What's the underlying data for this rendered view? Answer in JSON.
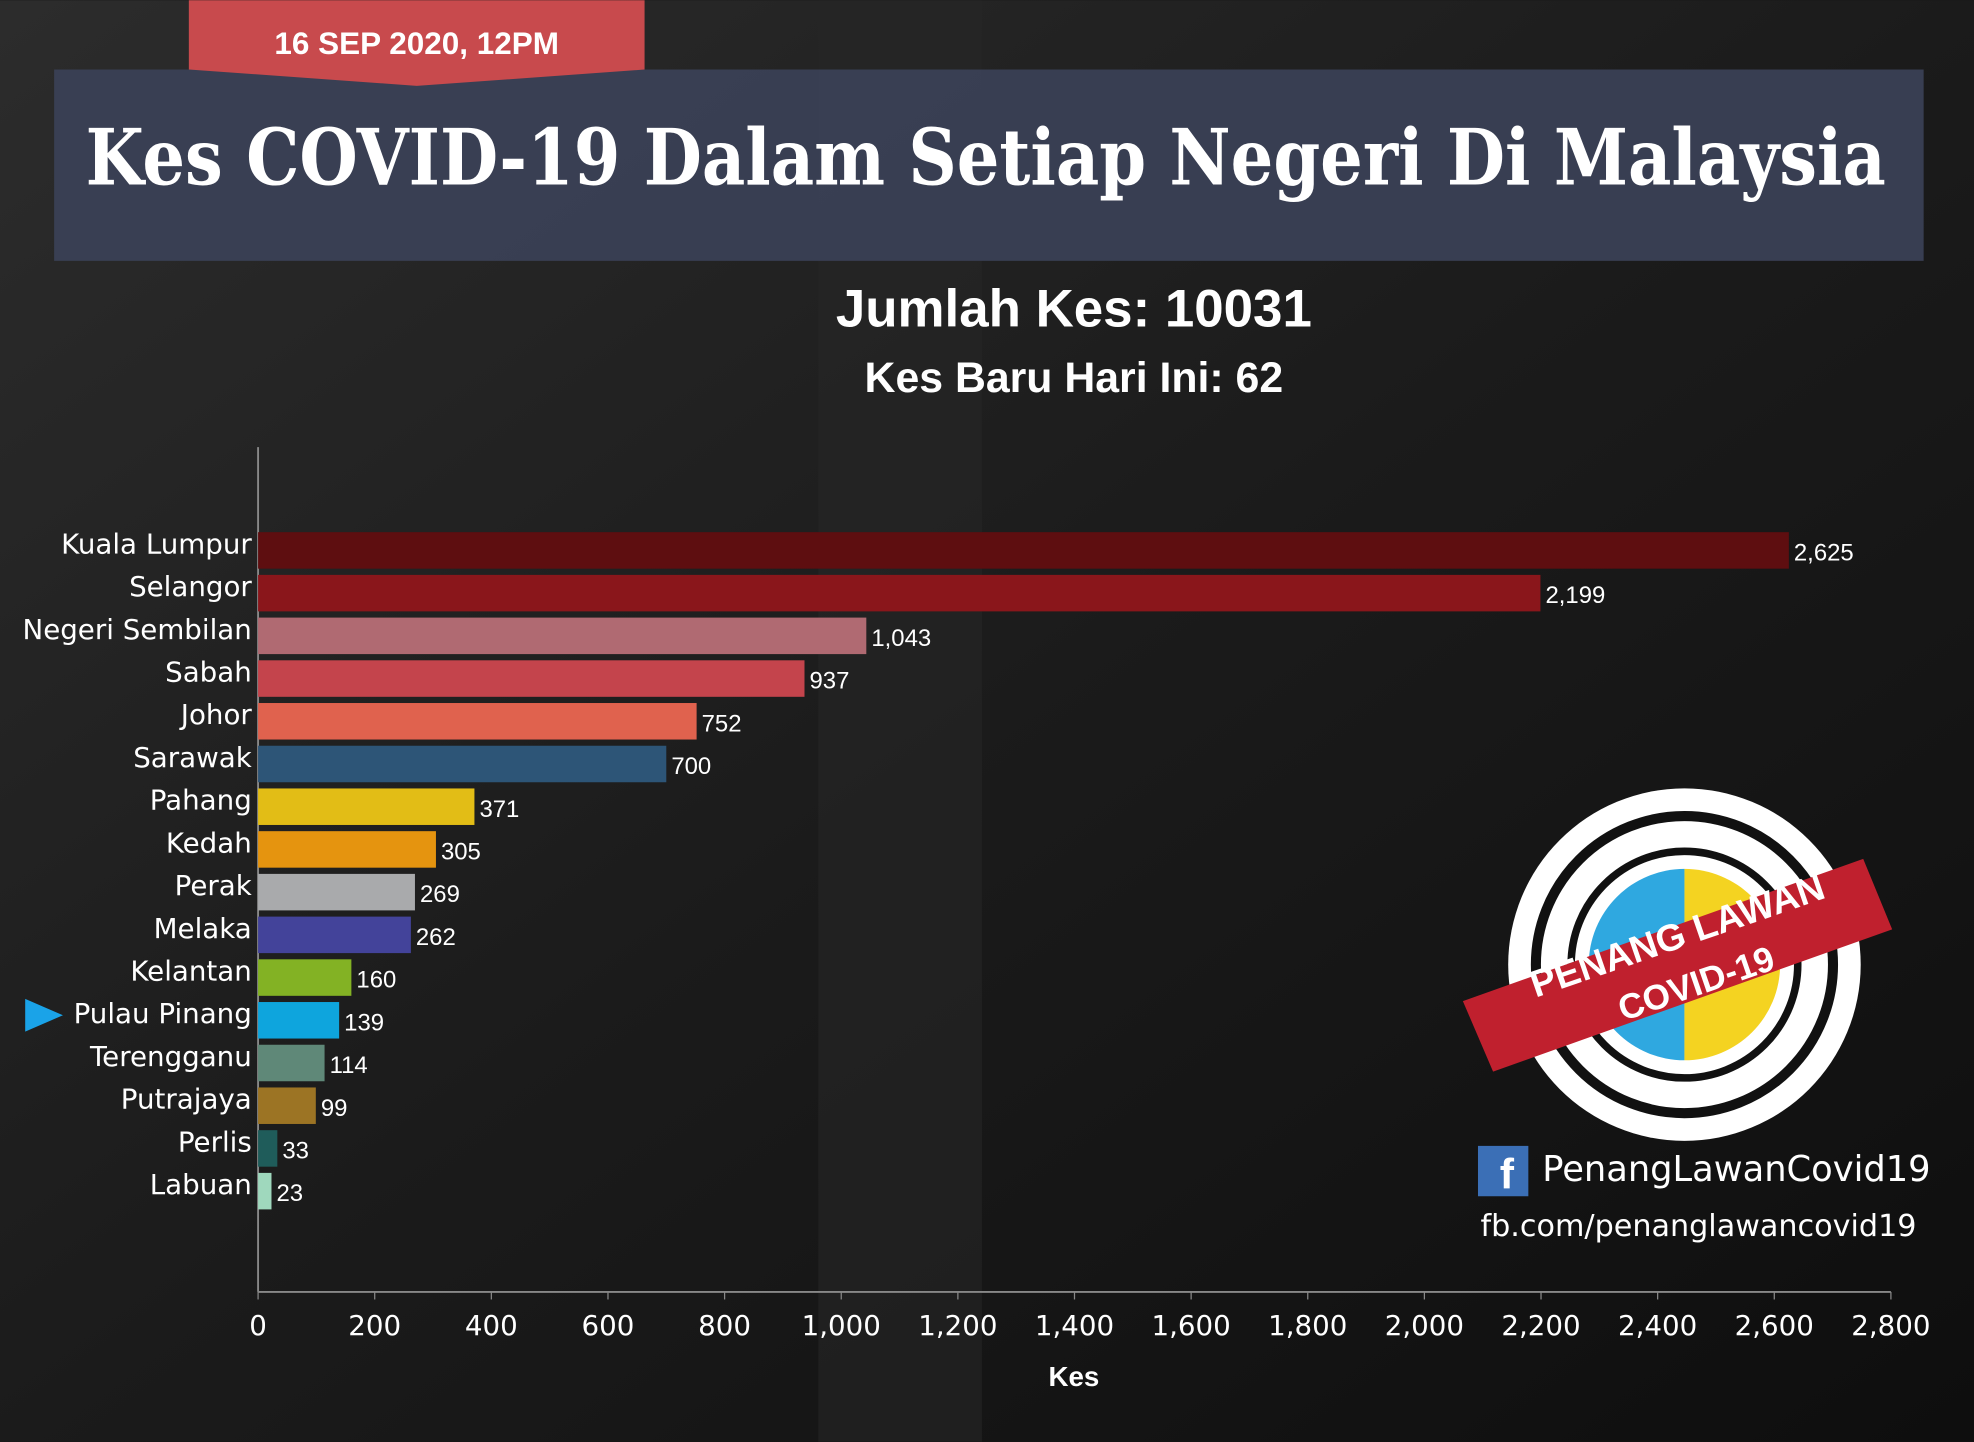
{
  "chart_data": {
    "type": "bar",
    "orientation": "horizontal",
    "date_label": "16 SEP 2020, 12PM",
    "title": "Kes COVID-19 Dalam Setiap Negeri Di Malaysia",
    "subtitle": "Jumlah Kes: 10031",
    "subtitle2": "Kes Baru Hari Ini: 62",
    "xlabel": "Kes",
    "categories": [
      "Kuala Lumpur",
      "Selangor",
      "Negeri Sembilan",
      "Sabah",
      "Johor",
      "Sarawak",
      "Pahang",
      "Kedah",
      "Perak",
      "Melaka",
      "Kelantan",
      "Pulau Pinang",
      "Terengganu",
      "Putrajaya",
      "Perlis",
      "Labuan"
    ],
    "values": [
      2625,
      2199,
      1043,
      937,
      752,
      700,
      371,
      305,
      269,
      262,
      160,
      139,
      114,
      99,
      33,
      23
    ],
    "value_labels": [
      "2,625",
      "2,199",
      "1,043",
      "937",
      "752",
      "700",
      "371",
      "305",
      "269",
      "262",
      "160",
      "139",
      "114",
      "99",
      "33",
      "23"
    ],
    "colors": [
      "#5e0e10",
      "#8a161b",
      "#b06a72",
      "#c4444c",
      "#e0624e",
      "#2d5577",
      "#e2bd16",
      "#e5940f",
      "#a9aaac",
      "#43439a",
      "#83b224",
      "#0ea5dd",
      "#5f8878",
      "#9c7424",
      "#1f5c5a",
      "#9fd8bd"
    ],
    "highlight": "Pulau Pinang",
    "xlim": [
      0,
      2800
    ],
    "xticks": [
      0,
      200,
      400,
      600,
      800,
      {
        "value": 1000,
        "label": "1,000"
      },
      {
        "value": 1200,
        "label": "1,200"
      },
      {
        "value": 1400,
        "label": "1,400"
      },
      {
        "value": 1600,
        "label": "1,600"
      },
      {
        "value": 1800,
        "label": "1,800"
      },
      {
        "value": 2000,
        "label": "2,000"
      },
      {
        "value": 2200,
        "label": "2,200"
      },
      {
        "value": 2400,
        "label": "2,400"
      },
      {
        "value": 2600,
        "label": "2,600"
      },
      {
        "value": 2800,
        "label": "2,800"
      }
    ]
  },
  "branding": {
    "logo_line1": "PENANG LAWAN",
    "logo_line2": "COVID-19",
    "facebook_name": "PenangLawanCovid19",
    "facebook_url": "fb.com/penanglawancovid19"
  }
}
